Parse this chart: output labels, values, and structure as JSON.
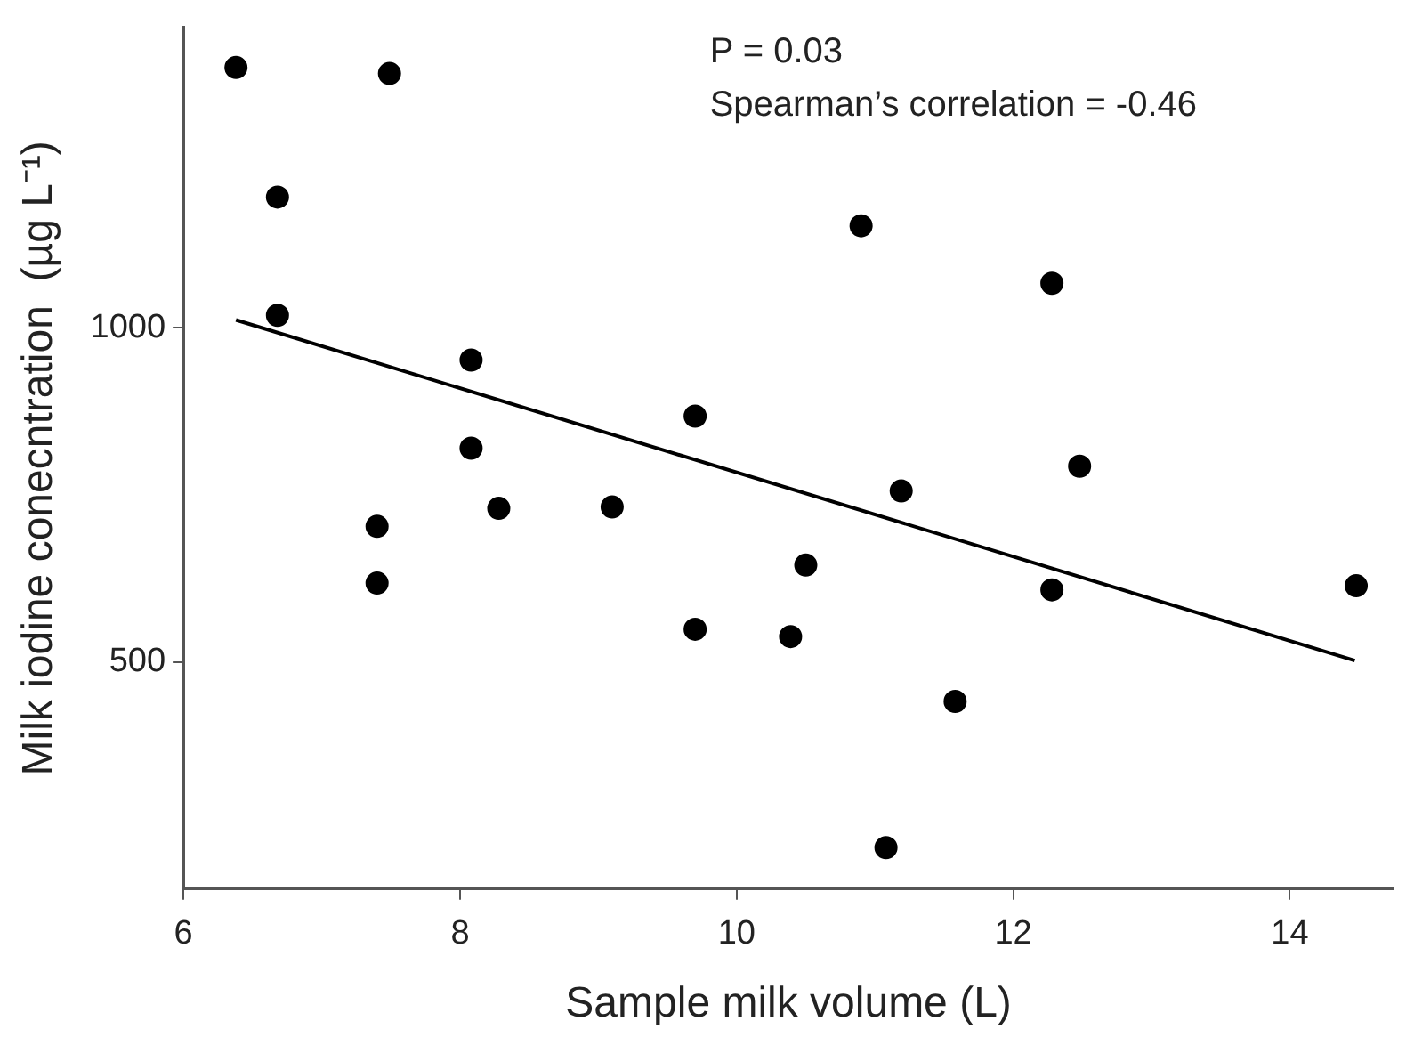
{
  "chart_data": {
    "type": "scatter",
    "xlabel": "Sample milk volume (L)",
    "ylabel": "Milk iodine conecntration  (µg L⁻¹)",
    "annotations": [
      "P = 0.03",
      "Spearman’s correlation = -0.46"
    ],
    "xlim": [
      6,
      14.75
    ],
    "xticks": [
      6,
      8,
      10,
      12,
      14
    ],
    "ylim": [
      160,
      1450
    ],
    "yticks": [
      500,
      1000
    ],
    "grid": false,
    "legend": false,
    "series": [
      {
        "marker": "circle",
        "color": "#000000",
        "x": [
          6.38,
          7.49,
          6.68,
          6.68,
          8.08,
          8.08,
          9.7,
          10.9,
          12.28,
          7.4,
          7.4,
          8.28,
          9.1,
          9.7,
          11.19,
          12.48,
          10.5,
          10.39,
          12.28,
          14.48,
          11.58,
          11.08
        ],
        "values": [
          1390,
          1381,
          1196,
          1019,
          952,
          820,
          868,
          1153,
          1067,
          703,
          618,
          730,
          732,
          549,
          756,
          793,
          645,
          538,
          608,
          614,
          441,
          222
        ]
      },
      {
        "type": "line",
        "color": "#000000",
        "x": [
          6.38,
          14.47
        ],
        "values": [
          1012,
          502
        ]
      }
    ]
  }
}
